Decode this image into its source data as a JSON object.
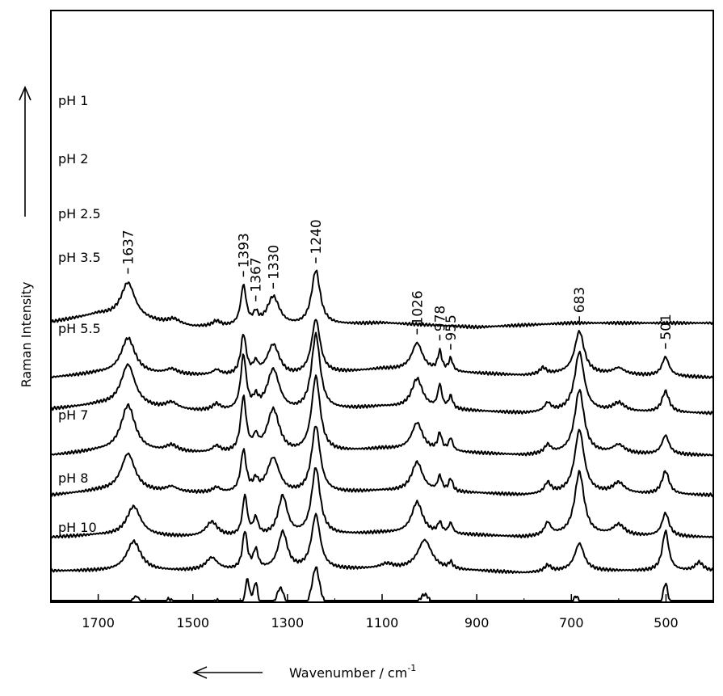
{
  "chart_data": {
    "type": "line",
    "xlabel": "Wavenumber / cm",
    "xlabel_superscript": "-1",
    "ylabel": "Raman Intensity",
    "xlim": [
      1800,
      400
    ],
    "x_reversed": true,
    "x_ticks": [
      1700,
      1500,
      1300,
      1100,
      900,
      700,
      500
    ],
    "y_ticks_shown": false,
    "axis_arrows": [
      "x: pointing to lower wavenumber",
      "y: pointing up (increasing intensity)"
    ],
    "peak_annotations": [
      {
        "label": "1637",
        "x": 1637
      },
      {
        "label": "1393",
        "x": 1393
      },
      {
        "label": "1367",
        "x": 1367
      },
      {
        "label": "1330",
        "x": 1330
      },
      {
        "label": "1240",
        "x": 1240
      },
      {
        "label": "1026",
        "x": 1026
      },
      {
        "label": "978",
        "x": 978
      },
      {
        "label": "955",
        "x": 955
      },
      {
        "label": "683",
        "x": 683
      },
      {
        "label": "501",
        "x": 501
      }
    ],
    "series": [
      {
        "name": "pH 1",
        "offset": 7.6,
        "baseline": [
          [
            1800,
            0.12
          ],
          [
            1700,
            0.3
          ],
          [
            1500,
            0.0
          ],
          [
            1300,
            0.0
          ],
          [
            1100,
            0.1
          ],
          [
            900,
            0.0
          ],
          [
            800,
            0.05
          ],
          [
            700,
            0.1
          ],
          [
            400,
            0.1
          ]
        ],
        "peaks": [
          [
            1637,
            0.85,
            18
          ],
          [
            1540,
            0.12,
            15
          ],
          [
            1450,
            0.12,
            10
          ],
          [
            1393,
            0.95,
            7
          ],
          [
            1367,
            0.25,
            6
          ],
          [
            1330,
            0.7,
            16
          ],
          [
            1240,
            1.3,
            11
          ]
        ]
      },
      {
        "name": "pH 2",
        "offset": 6.4,
        "baseline": [
          [
            1800,
            0.0
          ],
          [
            1700,
            0.1
          ],
          [
            1500,
            0.05
          ],
          [
            1300,
            0.0
          ],
          [
            1100,
            0.2
          ],
          [
            900,
            0.1
          ],
          [
            800,
            0.05
          ],
          [
            700,
            0.1
          ],
          [
            400,
            0.0
          ]
        ],
        "peaks": [
          [
            1637,
            0.85,
            18
          ],
          [
            1545,
            0.12,
            15
          ],
          [
            1450,
            0.12,
            10
          ],
          [
            1393,
            0.95,
            7
          ],
          [
            1367,
            0.25,
            6
          ],
          [
            1330,
            0.75,
            16
          ],
          [
            1240,
            1.3,
            11
          ],
          [
            1026,
            0.65,
            14
          ],
          [
            978,
            0.45,
            5
          ],
          [
            955,
            0.3,
            5
          ],
          [
            760,
            0.15,
            8
          ],
          [
            683,
            1.0,
            12
          ],
          [
            600,
            0.15,
            15
          ],
          [
            501,
            0.45,
            9
          ]
        ]
      },
      {
        "name": "pH 2.5",
        "offset": 5.55,
        "baseline": [
          [
            1800,
            0.1
          ],
          [
            1700,
            0.2
          ],
          [
            1500,
            0.05
          ],
          [
            1300,
            0.0
          ],
          [
            1100,
            0.15
          ],
          [
            900,
            0.05
          ],
          [
            800,
            0.0
          ],
          [
            700,
            0.05
          ],
          [
            400,
            0.0
          ]
        ],
        "peaks": [
          [
            1637,
            1.0,
            18
          ],
          [
            1545,
            0.15,
            15
          ],
          [
            1450,
            0.15,
            10
          ],
          [
            1393,
            1.3,
            7
          ],
          [
            1367,
            0.25,
            6
          ],
          [
            1330,
            1.0,
            16
          ],
          [
            1240,
            1.8,
            11
          ],
          [
            1026,
            0.7,
            14
          ],
          [
            978,
            0.55,
            5
          ],
          [
            955,
            0.3,
            5
          ],
          [
            750,
            0.2,
            8
          ],
          [
            683,
            1.4,
            12
          ],
          [
            600,
            0.2,
            15
          ],
          [
            501,
            0.5,
            9
          ]
        ]
      },
      {
        "name": "pH 3.5",
        "offset": 4.55,
        "baseline": [
          [
            1800,
            0.0
          ],
          [
            1700,
            0.1
          ],
          [
            1500,
            0.05
          ],
          [
            1300,
            0.0
          ],
          [
            1100,
            0.15
          ],
          [
            900,
            0.05
          ],
          [
            800,
            0.0
          ],
          [
            700,
            0.05
          ],
          [
            400,
            0.0
          ]
        ],
        "peaks": [
          [
            1637,
            1.1,
            18
          ],
          [
            1545,
            0.15,
            15
          ],
          [
            1450,
            0.15,
            10
          ],
          [
            1393,
            1.3,
            7
          ],
          [
            1367,
            0.3,
            6
          ],
          [
            1330,
            1.05,
            16
          ],
          [
            1240,
            1.8,
            11
          ],
          [
            1026,
            0.65,
            14
          ],
          [
            978,
            0.4,
            5
          ],
          [
            955,
            0.3,
            5
          ],
          [
            750,
            0.2,
            8
          ],
          [
            683,
            1.5,
            12
          ],
          [
            600,
            0.2,
            15
          ],
          [
            501,
            0.45,
            9
          ]
        ]
      },
      {
        "name": "pH 5.5",
        "offset": 3.6,
        "baseline": [
          [
            1800,
            0.0
          ],
          [
            1700,
            0.1
          ],
          [
            1500,
            0.05
          ],
          [
            1300,
            0.0
          ],
          [
            1100,
            0.1
          ],
          [
            900,
            0.05
          ],
          [
            800,
            0.0
          ],
          [
            700,
            0.05
          ],
          [
            400,
            0.0
          ]
        ],
        "peaks": [
          [
            1637,
            0.9,
            18
          ],
          [
            1545,
            0.12,
            15
          ],
          [
            1450,
            0.12,
            10
          ],
          [
            1393,
            1.0,
            7
          ],
          [
            1367,
            0.25,
            6
          ],
          [
            1330,
            0.85,
            16
          ],
          [
            1240,
            1.6,
            11
          ],
          [
            1026,
            0.7,
            14
          ],
          [
            978,
            0.35,
            5
          ],
          [
            955,
            0.3,
            5
          ],
          [
            750,
            0.25,
            8
          ],
          [
            683,
            1.5,
            12
          ],
          [
            600,
            0.25,
            15
          ],
          [
            501,
            0.55,
            9
          ]
        ]
      },
      {
        "name": "pH 7",
        "offset": 2.6,
        "baseline": [
          [
            1800,
            0.0
          ],
          [
            1700,
            0.05
          ],
          [
            1500,
            0.0
          ],
          [
            1300,
            0.0
          ],
          [
            1100,
            0.1
          ],
          [
            900,
            0.05
          ],
          [
            800,
            0.0
          ],
          [
            700,
            0.05
          ],
          [
            400,
            0.0
          ]
        ],
        "peaks": [
          [
            1625,
            0.7,
            18
          ],
          [
            1460,
            0.35,
            15
          ],
          [
            1390,
            0.95,
            6
          ],
          [
            1367,
            0.4,
            6
          ],
          [
            1310,
            0.95,
            12
          ],
          [
            1240,
            1.6,
            11
          ],
          [
            1026,
            0.75,
            14
          ],
          [
            978,
            0.25,
            5
          ],
          [
            955,
            0.25,
            5
          ],
          [
            750,
            0.3,
            8
          ],
          [
            683,
            1.5,
            12
          ],
          [
            600,
            0.25,
            15
          ],
          [
            501,
            0.55,
            9
          ]
        ]
      },
      {
        "name": "pH 8",
        "offset": 1.8,
        "baseline": [
          [
            1800,
            0.0
          ],
          [
            1700,
            0.0
          ],
          [
            1500,
            0.0
          ],
          [
            1300,
            0.0
          ],
          [
            1100,
            0.05
          ],
          [
            900,
            0.0
          ],
          [
            800,
            -0.05
          ],
          [
            700,
            0.0
          ],
          [
            400,
            0.0
          ]
        ],
        "peaks": [
          [
            1625,
            0.7,
            18
          ],
          [
            1460,
            0.3,
            15
          ],
          [
            1390,
            0.9,
            6
          ],
          [
            1367,
            0.45,
            6
          ],
          [
            1310,
            0.9,
            12
          ],
          [
            1240,
            1.3,
            11
          ],
          [
            1090,
            0.1,
            15
          ],
          [
            1010,
            0.7,
            18
          ],
          [
            955,
            0.15,
            5
          ],
          [
            750,
            0.15,
            8
          ],
          [
            683,
            0.65,
            12
          ],
          [
            501,
            0.95,
            8
          ],
          [
            430,
            0.2,
            10
          ]
        ]
      },
      {
        "name": "pH 10",
        "offset": 0.75,
        "baseline": [
          [
            1800,
            0.05
          ],
          [
            1700,
            0.1
          ],
          [
            1500,
            0.05
          ],
          [
            1300,
            0.0
          ],
          [
            1100,
            0.05
          ],
          [
            900,
            0.0
          ],
          [
            800,
            -0.05
          ],
          [
            700,
            0.0
          ],
          [
            400,
            0.0
          ]
        ],
        "peaks": [
          [
            1620,
            0.35,
            15
          ],
          [
            1550,
            0.3,
            15
          ],
          [
            1450,
            0.3,
            10
          ],
          [
            1385,
            0.75,
            6
          ],
          [
            1367,
            0.65,
            6
          ],
          [
            1315,
            0.6,
            12
          ],
          [
            1240,
            1.1,
            11
          ],
          [
            1090,
            0.15,
            15
          ],
          [
            1010,
            0.45,
            18
          ],
          [
            950,
            0.15,
            8
          ],
          [
            750,
            0.1,
            8
          ],
          [
            690,
            0.45,
            10
          ],
          [
            501,
            0.75,
            8
          ],
          [
            430,
            0.15,
            10
          ]
        ]
      }
    ]
  }
}
